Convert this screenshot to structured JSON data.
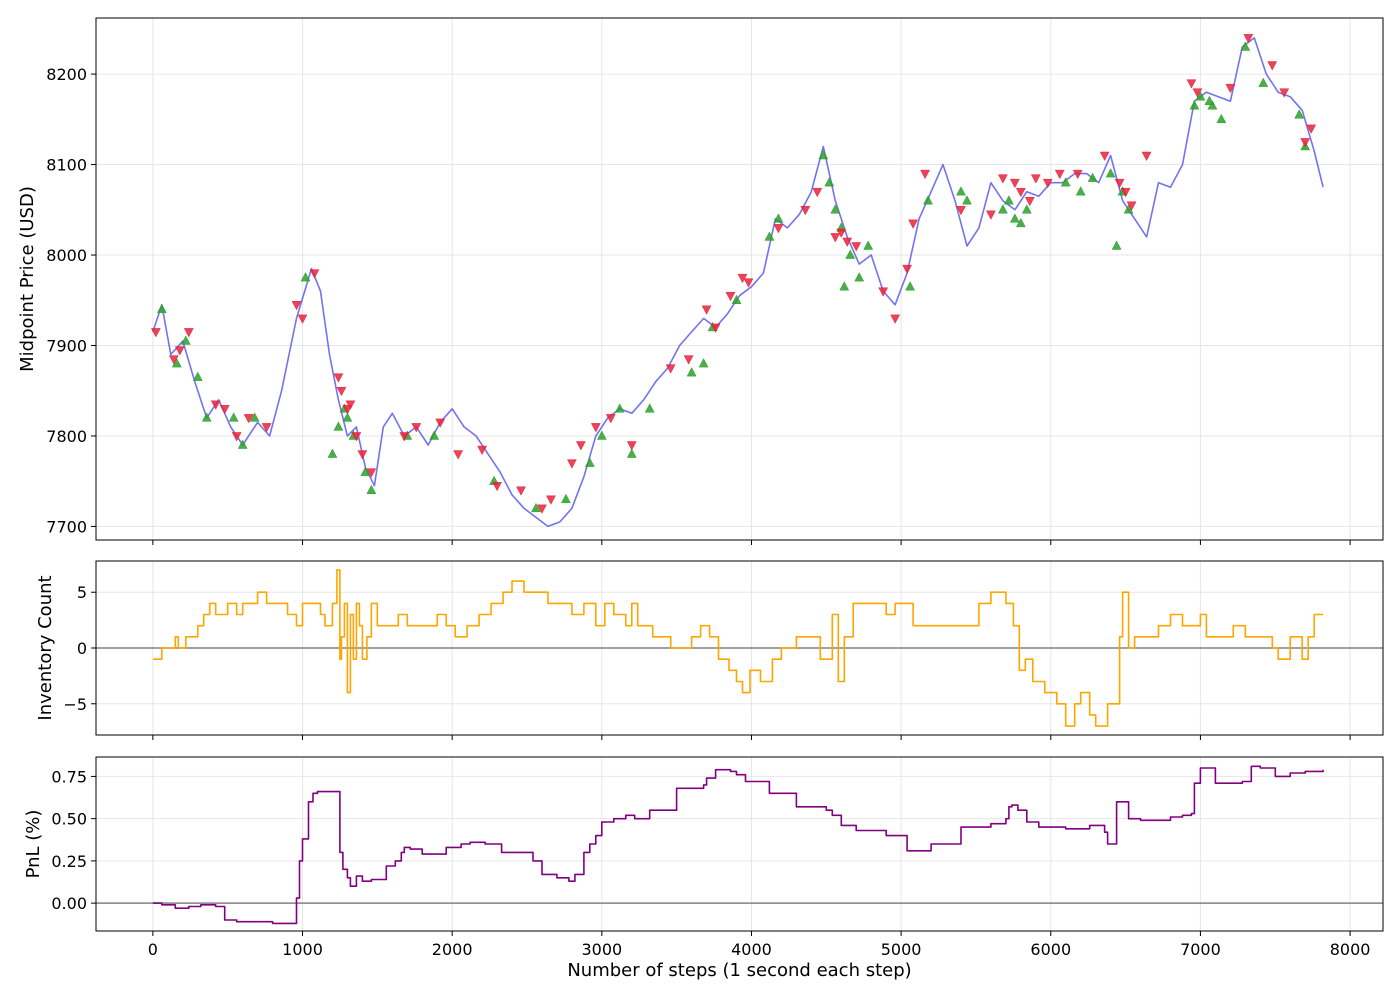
{
  "chart_data": [
    {
      "type": "line",
      "id": "price",
      "ylabel": "Midpoint Price (USD)",
      "xlabel": "",
      "xlim": [
        -380,
        8220
      ],
      "ylim": [
        7685,
        8262
      ],
      "xticks": [
        0,
        1000,
        2000,
        3000,
        4000,
        5000,
        6000,
        7000,
        8000
      ],
      "yticks": [
        7700,
        7800,
        7900,
        8000,
        8100,
        8200
      ],
      "xtick_labels_shown": false,
      "grid": true,
      "series": [
        {
          "color": "#6464f0",
          "x": [
            0,
            60,
            120,
            200,
            280,
            360,
            440,
            520,
            600,
            700,
            780,
            860,
            960,
            1060,
            1120,
            1180,
            1240,
            1300,
            1360,
            1420,
            1480,
            1540,
            1600,
            1680,
            1760,
            1840,
            1920,
            2000,
            2080,
            2160,
            2240,
            2320,
            2400,
            2480,
            2560,
            2640,
            2720,
            2800,
            2880,
            2960,
            3040,
            3120,
            3200,
            3280,
            3360,
            3440,
            3520,
            3600,
            3680,
            3760,
            3840,
            3920,
            4000,
            4080,
            4160,
            4240,
            4320,
            4400,
            4480,
            4560,
            4640,
            4720,
            4800,
            4880,
            4960,
            5040,
            5120,
            5200,
            5280,
            5360,
            5440,
            5520,
            5600,
            5680,
            5760,
            5840,
            5920,
            6000,
            6080,
            6160,
            6240,
            6320,
            6400,
            6480,
            6560,
            6640,
            6720,
            6800,
            6880,
            6960,
            7040,
            7120,
            7200,
            7280,
            7360,
            7440,
            7520,
            7600,
            7680,
            7760,
            7820
          ],
          "y": [
            7915,
            7945,
            7890,
            7905,
            7860,
            7820,
            7840,
            7810,
            7790,
            7815,
            7800,
            7850,
            7930,
            7985,
            7960,
            7890,
            7840,
            7800,
            7810,
            7765,
            7745,
            7810,
            7825,
            7800,
            7810,
            7790,
            7815,
            7830,
            7810,
            7800,
            7780,
            7760,
            7735,
            7720,
            7710,
            7700,
            7705,
            7720,
            7755,
            7800,
            7820,
            7830,
            7825,
            7840,
            7860,
            7875,
            7900,
            7915,
            7930,
            7920,
            7935,
            7955,
            7965,
            7980,
            8040,
            8030,
            8045,
            8070,
            8120,
            8060,
            8020,
            7990,
            8000,
            7960,
            7945,
            7980,
            8040,
            8070,
            8100,
            8060,
            8010,
            8030,
            8080,
            8060,
            8050,
            8070,
            8065,
            8080,
            8080,
            8090,
            8090,
            8080,
            8110,
            8060,
            8040,
            8020,
            8080,
            8075,
            8100,
            8170,
            8180,
            8175,
            8170,
            8230,
            8240,
            8200,
            8180,
            8175,
            8160,
            8115,
            8075
          ]
        }
      ],
      "buy_markers": {
        "color": "#2ca02c",
        "shape": "triangle-up",
        "x": [
          60,
          160,
          220,
          300,
          360,
          540,
          600,
          680,
          1020,
          1200,
          1240,
          1280,
          1300,
          1340,
          1420,
          1460,
          1700,
          1880,
          2280,
          2560,
          2760,
          2920,
          3000,
          3120,
          3200,
          3320,
          3600,
          3680,
          3740,
          3900,
          4120,
          4180,
          4480,
          4520,
          4560,
          4600,
          4620,
          4660,
          4720,
          4780,
          5060,
          5180,
          5400,
          5440,
          5680,
          5720,
          5760,
          5800,
          5840,
          6100,
          6200,
          6280,
          6400,
          6440,
          6480,
          6520,
          6960,
          7000,
          7060,
          7080,
          7140,
          7300,
          7420,
          7660,
          7700
        ],
        "y": [
          7940,
          7880,
          7905,
          7865,
          7820,
          7820,
          7790,
          7820,
          7975,
          7780,
          7810,
          7830,
          7820,
          7800,
          7760,
          7740,
          7800,
          7800,
          7750,
          7720,
          7730,
          7770,
          7800,
          7830,
          7780,
          7830,
          7870,
          7880,
          7920,
          7950,
          8020,
          8040,
          8110,
          8080,
          8050,
          8030,
          7965,
          8000,
          7975,
          8010,
          7965,
          8060,
          8070,
          8060,
          8050,
          8060,
          8040,
          8035,
          8050,
          8080,
          8070,
          8085,
          8090,
          8010,
          8070,
          8050,
          8165,
          8175,
          8170,
          8165,
          8150,
          8230,
          8190,
          8155,
          8120
        ]
      },
      "sell_markers": {
        "color": "#e8223c",
        "shape": "triangle-down",
        "x": [
          20,
          140,
          180,
          240,
          420,
          480,
          560,
          640,
          760,
          960,
          1000,
          1080,
          1240,
          1260,
          1300,
          1320,
          1360,
          1400,
          1460,
          1680,
          1760,
          1920,
          2040,
          2200,
          2300,
          2460,
          2600,
          2660,
          2800,
          2860,
          2960,
          3060,
          3200,
          3460,
          3580,
          3700,
          3760,
          3860,
          3940,
          3980,
          4180,
          4360,
          4440,
          4560,
          4600,
          4640,
          4700,
          4880,
          4960,
          5040,
          5080,
          5160,
          5400,
          5600,
          5680,
          5760,
          5800,
          5860,
          5900,
          5980,
          6060,
          6180,
          6360,
          6460,
          6500,
          6540,
          6640,
          6940,
          6980,
          7200,
          7320,
          7480,
          7560,
          7700,
          7740
        ],
        "y": [
          7915,
          7885,
          7895,
          7915,
          7835,
          7830,
          7800,
          7820,
          7810,
          7945,
          7930,
          7980,
          7865,
          7850,
          7830,
          7835,
          7800,
          7780,
          7760,
          7800,
          7810,
          7815,
          7780,
          7785,
          7745,
          7740,
          7720,
          7730,
          7770,
          7790,
          7810,
          7820,
          7790,
          7875,
          7885,
          7940,
          7920,
          7955,
          7975,
          7970,
          8030,
          8050,
          8070,
          8020,
          8025,
          8015,
          8010,
          7960,
          7930,
          7985,
          8035,
          8090,
          8050,
          8045,
          8085,
          8080,
          8070,
          8060,
          8085,
          8080,
          8090,
          8090,
          8110,
          8080,
          8070,
          8055,
          8110,
          8190,
          8180,
          8185,
          8240,
          8210,
          8180,
          8125,
          8140
        ]
      }
    },
    {
      "type": "line",
      "id": "inventory",
      "ylabel": "Inventory Count",
      "xlabel": "",
      "xlim": [
        -380,
        8220
      ],
      "ylim": [
        -7.8,
        7.8
      ],
      "xticks": [
        0,
        1000,
        2000,
        3000,
        4000,
        5000,
        6000,
        7000,
        8000
      ],
      "yticks": [
        -5,
        0,
        5
      ],
      "ytick_labels": [
        "−5",
        "0",
        "5"
      ],
      "xtick_labels_shown": false,
      "reference_line_y": 0,
      "grid": true,
      "series": [
        {
          "color": "#ffa500",
          "x": [
            0,
            60,
            120,
            150,
            170,
            220,
            300,
            340,
            380,
            420,
            500,
            560,
            600,
            700,
            760,
            860,
            900,
            960,
            1000,
            1060,
            1120,
            1150,
            1200,
            1230,
            1250,
            1260,
            1280,
            1300,
            1320,
            1340,
            1360,
            1380,
            1400,
            1430,
            1460,
            1500,
            1560,
            1640,
            1700,
            1800,
            1900,
            1960,
            2020,
            2100,
            2180,
            2260,
            2340,
            2400,
            2480,
            2560,
            2640,
            2720,
            2800,
            2880,
            2960,
            3020,
            3080,
            3160,
            3200,
            3240,
            3340,
            3460,
            3600,
            3660,
            3720,
            3780,
            3850,
            3900,
            3940,
            3990,
            4060,
            4140,
            4200,
            4300,
            4460,
            4540,
            4580,
            4620,
            4680,
            4800,
            4900,
            4960,
            5080,
            5280,
            5520,
            5600,
            5700,
            5750,
            5790,
            5830,
            5880,
            5960,
            6040,
            6100,
            6160,
            6200,
            6260,
            6300,
            6380,
            6420,
            6460,
            6480,
            6520,
            6560,
            6640,
            6720,
            6800,
            6880,
            7000,
            7040,
            7120,
            7220,
            7300,
            7480,
            7520,
            7600,
            7680,
            7720,
            7760,
            7820
          ],
          "y": [
            -1,
            0,
            0,
            1,
            0,
            1,
            2,
            3,
            4,
            3,
            4,
            3,
            4,
            5,
            4,
            4,
            3,
            2,
            4,
            4,
            3,
            2,
            4,
            7,
            -1,
            1,
            4,
            -4,
            3,
            -1,
            4,
            2,
            -1,
            1,
            4,
            2,
            2,
            3,
            2,
            2,
            3,
            2,
            1,
            2,
            3,
            4,
            5,
            6,
            5,
            5,
            4,
            4,
            3,
            4,
            2,
            4,
            3,
            2,
            4,
            2,
            1,
            0,
            1,
            2,
            1,
            -1,
            -2,
            -3,
            -4,
            -2,
            -3,
            -1,
            0,
            1,
            -1,
            3,
            -3,
            1,
            4,
            4,
            3,
            4,
            2,
            2,
            4,
            5,
            4,
            2,
            -2,
            -1,
            -3,
            -4,
            -5,
            -7,
            -5,
            -4,
            -6,
            -7,
            -5,
            -5,
            1,
            5,
            0,
            1,
            1,
            2,
            3,
            2,
            3,
            1,
            1,
            2,
            1,
            0,
            -1,
            1,
            -1,
            1,
            3,
            3
          ],
          "step": true
        }
      ]
    },
    {
      "type": "line",
      "id": "pnl",
      "ylabel": "PnL (%)",
      "xlabel": "Number of steps (1 second each step)",
      "xlim": [
        -380,
        8220
      ],
      "ylim": [
        -0.165,
        0.865
      ],
      "xticks": [
        0,
        1000,
        2000,
        3000,
        4000,
        5000,
        6000,
        7000,
        8000
      ],
      "yticks": [
        0.0,
        0.25,
        0.5,
        0.75
      ],
      "ytick_labels": [
        "0.00",
        "0.25",
        "0.50",
        "0.75"
      ],
      "xtick_labels_shown": true,
      "reference_line_y": 0,
      "grid": true,
      "series": [
        {
          "color": "#800080",
          "x": [
            0,
            60,
            150,
            240,
            320,
            420,
            480,
            560,
            680,
            800,
            940,
            960,
            980,
            1000,
            1040,
            1070,
            1100,
            1240,
            1250,
            1270,
            1300,
            1320,
            1360,
            1400,
            1460,
            1560,
            1620,
            1660,
            1680,
            1720,
            1800,
            1880,
            1960,
            2060,
            2120,
            2220,
            2330,
            2540,
            2600,
            2700,
            2780,
            2820,
            2880,
            2920,
            2960,
            3000,
            3080,
            3160,
            3220,
            3320,
            3500,
            3680,
            3700,
            3760,
            3860,
            3900,
            3960,
            4120,
            4300,
            4500,
            4540,
            4600,
            4700,
            4900,
            5040,
            5200,
            5400,
            5600,
            5700,
            5720,
            5740,
            5780,
            5840,
            5920,
            6100,
            6260,
            6360,
            6380,
            6400,
            6440,
            6520,
            6600,
            6800,
            6880,
            6940,
            6960,
            7000,
            7100,
            7280,
            7340,
            7400,
            7500,
            7600,
            7700,
            7820
          ],
          "y": [
            0.0,
            -0.01,
            -0.03,
            -0.02,
            -0.01,
            -0.02,
            -0.1,
            -0.11,
            -0.11,
            -0.12,
            -0.12,
            0.03,
            0.25,
            0.38,
            0.6,
            0.65,
            0.66,
            0.66,
            0.3,
            0.2,
            0.15,
            0.1,
            0.16,
            0.13,
            0.14,
            0.22,
            0.25,
            0.3,
            0.33,
            0.32,
            0.29,
            0.29,
            0.33,
            0.35,
            0.36,
            0.35,
            0.3,
            0.25,
            0.17,
            0.15,
            0.13,
            0.17,
            0.3,
            0.35,
            0.4,
            0.48,
            0.5,
            0.52,
            0.5,
            0.55,
            0.68,
            0.7,
            0.74,
            0.79,
            0.78,
            0.76,
            0.72,
            0.65,
            0.57,
            0.55,
            0.52,
            0.46,
            0.43,
            0.4,
            0.31,
            0.35,
            0.45,
            0.47,
            0.5,
            0.57,
            0.58,
            0.55,
            0.48,
            0.45,
            0.44,
            0.46,
            0.42,
            0.35,
            0.35,
            0.6,
            0.5,
            0.49,
            0.51,
            0.52,
            0.53,
            0.71,
            0.8,
            0.71,
            0.72,
            0.81,
            0.8,
            0.75,
            0.77,
            0.78,
            0.79
          ],
          "step": true
        }
      ]
    }
  ]
}
